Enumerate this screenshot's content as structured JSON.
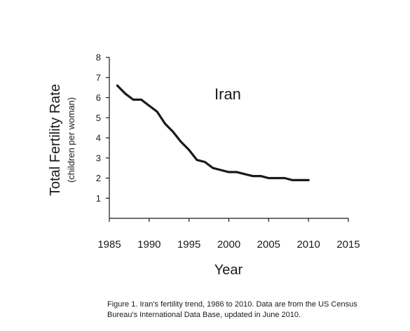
{
  "chart_data": {
    "type": "line",
    "title": "",
    "series_label": "Iran",
    "xlabel": "Year",
    "ylabel": "Total Fertility Rate",
    "ylabel_sub": "(children per woman)",
    "xlim": [
      1985,
      2015
    ],
    "ylim": [
      0,
      8
    ],
    "xticks": [
      1985,
      1990,
      1995,
      2000,
      2005,
      2010,
      2015
    ],
    "yticks": [
      1,
      2,
      3,
      4,
      5,
      6,
      7,
      8
    ],
    "grid": false,
    "series": [
      {
        "name": "Iran",
        "color": "#1a1a1a",
        "x": [
          1986,
          1987,
          1988,
          1989,
          1990,
          1991,
          1992,
          1993,
          1994,
          1995,
          1996,
          1997,
          1998,
          1999,
          2000,
          2001,
          2002,
          2003,
          2004,
          2005,
          2006,
          2007,
          2008,
          2009,
          2010
        ],
        "y": [
          6.6,
          6.2,
          5.9,
          5.9,
          5.6,
          5.3,
          4.7,
          4.3,
          3.8,
          3.4,
          2.9,
          2.8,
          2.5,
          2.4,
          2.3,
          2.3,
          2.2,
          2.1,
          2.1,
          2.0,
          2.0,
          2.0,
          1.9,
          1.9,
          1.9
        ]
      }
    ]
  },
  "caption": {
    "line1": "Figure 1.  Iran's fertility trend, 1986 to 2010.  Data are from the US Census",
    "line2": "Bureau's International Data Base, updated in June 2010."
  }
}
